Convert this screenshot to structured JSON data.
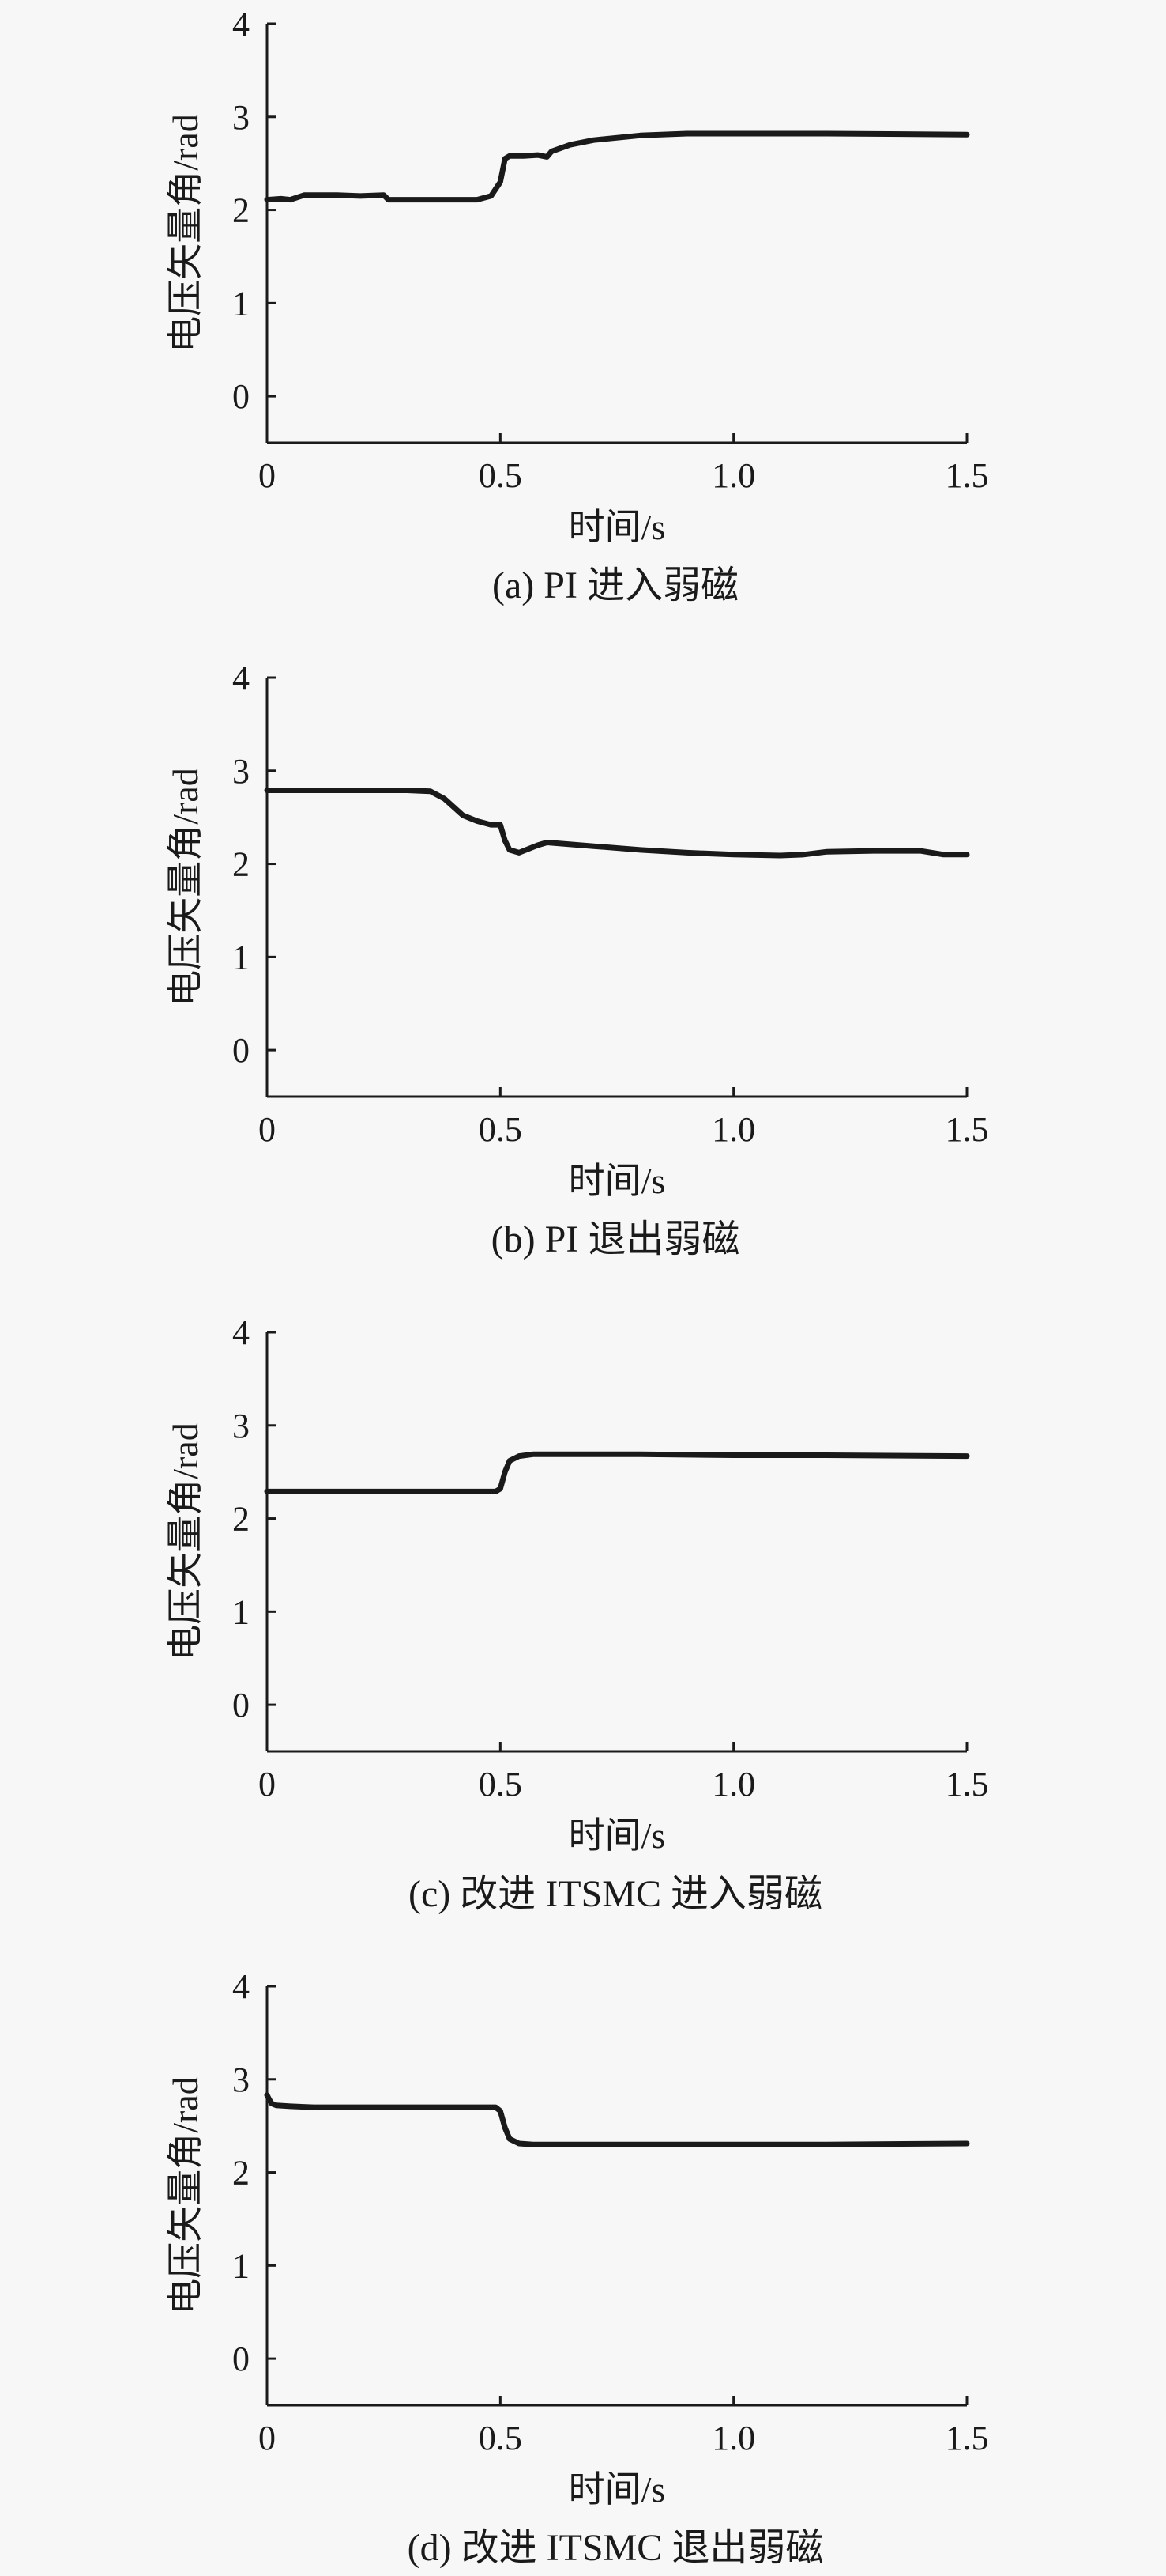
{
  "chart_data": [
    {
      "type": "line",
      "caption": "(a) PI 进入弱磁",
      "xlabel": "时间/s",
      "ylabel": "电压矢量角/rad",
      "xlim": [
        0,
        1.5
      ],
      "ylim": [
        -0.5,
        4
      ],
      "xticks": [
        0,
        0.5,
        1.0,
        1.5
      ],
      "xtick_labels": [
        "0",
        "0.5",
        "1.0",
        "1.5"
      ],
      "yticks": [
        0,
        1,
        2,
        3,
        4
      ],
      "ytick_labels": [
        "0",
        "1",
        "2",
        "3",
        "4"
      ],
      "grid": false,
      "series": [
        {
          "x": [
            0,
            0.03,
            0.05,
            0.08,
            0.1,
            0.15,
            0.2,
            0.25,
            0.26,
            0.3,
            0.35,
            0.4,
            0.45,
            0.48,
            0.5,
            0.51,
            0.52,
            0.55,
            0.58,
            0.6,
            0.61,
            0.65,
            0.7,
            0.8,
            0.9,
            1.0,
            1.2,
            1.5
          ],
          "y": [
            2.11,
            2.12,
            2.11,
            2.16,
            2.16,
            2.16,
            2.15,
            2.16,
            2.11,
            2.11,
            2.11,
            2.11,
            2.11,
            2.15,
            2.3,
            2.55,
            2.58,
            2.58,
            2.59,
            2.57,
            2.63,
            2.7,
            2.75,
            2.8,
            2.82,
            2.82,
            2.82,
            2.81
          ]
        }
      ]
    },
    {
      "type": "line",
      "caption": "(b) PI 退出弱磁",
      "xlabel": "时间/s",
      "ylabel": "电压矢量角/rad",
      "xlim": [
        0,
        1.5
      ],
      "ylim": [
        -0.5,
        4
      ],
      "xticks": [
        0,
        0.5,
        1.0,
        1.5
      ],
      "xtick_labels": [
        "0",
        "0.5",
        "1.0",
        "1.5"
      ],
      "yticks": [
        0,
        1,
        2,
        3,
        4
      ],
      "ytick_labels": [
        "0",
        "1",
        "2",
        "3",
        "4"
      ],
      "grid": false,
      "series": [
        {
          "x": [
            0,
            0.1,
            0.2,
            0.3,
            0.35,
            0.38,
            0.42,
            0.45,
            0.48,
            0.5,
            0.51,
            0.52,
            0.54,
            0.58,
            0.6,
            0.7,
            0.8,
            0.9,
            1.0,
            1.1,
            1.15,
            1.2,
            1.3,
            1.4,
            1.45,
            1.5
          ],
          "y": [
            2.79,
            2.79,
            2.79,
            2.79,
            2.78,
            2.7,
            2.52,
            2.46,
            2.42,
            2.42,
            2.25,
            2.15,
            2.12,
            2.2,
            2.23,
            2.19,
            2.15,
            2.12,
            2.1,
            2.09,
            2.1,
            2.13,
            2.14,
            2.14,
            2.1,
            2.1
          ]
        }
      ]
    },
    {
      "type": "line",
      "caption": "(c) 改进 ITSMC 进入弱磁",
      "xlabel": "时间/s",
      "ylabel": "电压矢量角/rad",
      "xlim": [
        0,
        1.5
      ],
      "ylim": [
        -0.5,
        4
      ],
      "xticks": [
        0,
        0.5,
        1.0,
        1.5
      ],
      "xtick_labels": [
        "0",
        "0.5",
        "1.0",
        "1.5"
      ],
      "yticks": [
        0,
        1,
        2,
        3,
        4
      ],
      "ytick_labels": [
        "0",
        "1",
        "2",
        "3",
        "4"
      ],
      "grid": false,
      "series": [
        {
          "x": [
            0,
            0.1,
            0.2,
            0.3,
            0.4,
            0.49,
            0.5,
            0.51,
            0.52,
            0.54,
            0.57,
            0.6,
            0.8,
            1.0,
            1.2,
            1.5
          ],
          "y": [
            2.29,
            2.29,
            2.29,
            2.29,
            2.29,
            2.29,
            2.32,
            2.5,
            2.62,
            2.67,
            2.69,
            2.69,
            2.69,
            2.68,
            2.68,
            2.67
          ]
        }
      ]
    },
    {
      "type": "line",
      "caption": "(d) 改进 ITSMC 退出弱磁",
      "xlabel": "时间/s",
      "ylabel": "电压矢量角/rad",
      "xlim": [
        0,
        1.5
      ],
      "ylim": [
        -0.5,
        4
      ],
      "xticks": [
        0,
        0.5,
        1.0,
        1.5
      ],
      "xtick_labels": [
        "0",
        "0.5",
        "1.0",
        "1.5"
      ],
      "yticks": [
        0,
        1,
        2,
        3,
        4
      ],
      "ytick_labels": [
        "0",
        "1",
        "2",
        "3",
        "4"
      ],
      "grid": false,
      "series": [
        {
          "x": [
            0,
            0.005,
            0.01,
            0.02,
            0.05,
            0.1,
            0.2,
            0.3,
            0.4,
            0.49,
            0.5,
            0.51,
            0.52,
            0.54,
            0.57,
            0.6,
            0.8,
            1.0,
            1.2,
            1.5
          ],
          "y": [
            2.83,
            2.78,
            2.74,
            2.72,
            2.71,
            2.7,
            2.7,
            2.7,
            2.7,
            2.7,
            2.66,
            2.48,
            2.36,
            2.31,
            2.3,
            2.3,
            2.3,
            2.3,
            2.3,
            2.31
          ]
        }
      ]
    }
  ]
}
